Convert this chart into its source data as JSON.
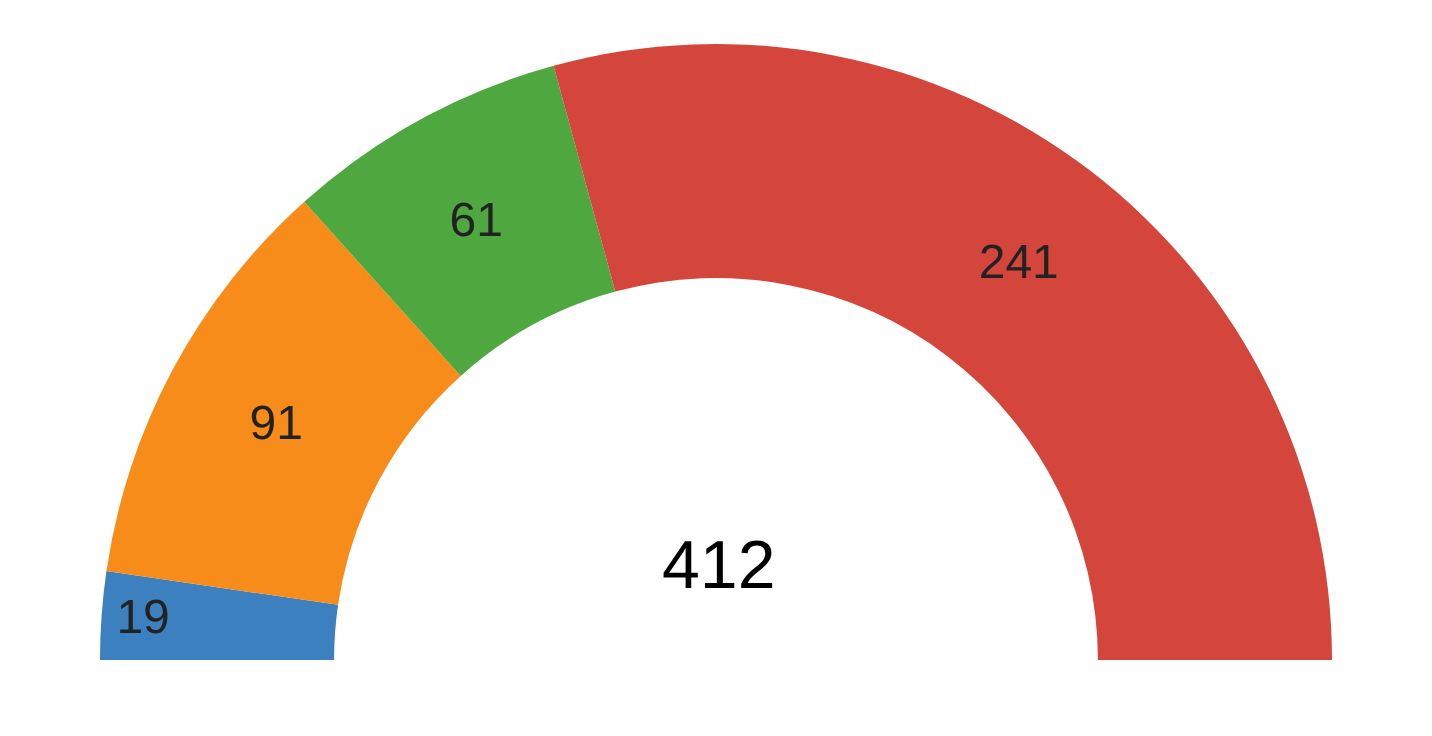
{
  "chart_data": {
    "type": "donut",
    "categories": [
      null,
      null,
      null,
      null
    ],
    "values": [
      19,
      91,
      61,
      241
    ],
    "colors": [
      "#3d80bf",
      "#f78c1a",
      "#4fa83f",
      "#d4453b"
    ],
    "data_labels": true,
    "annotations": [
      "412"
    ],
    "legend": false
  }
}
